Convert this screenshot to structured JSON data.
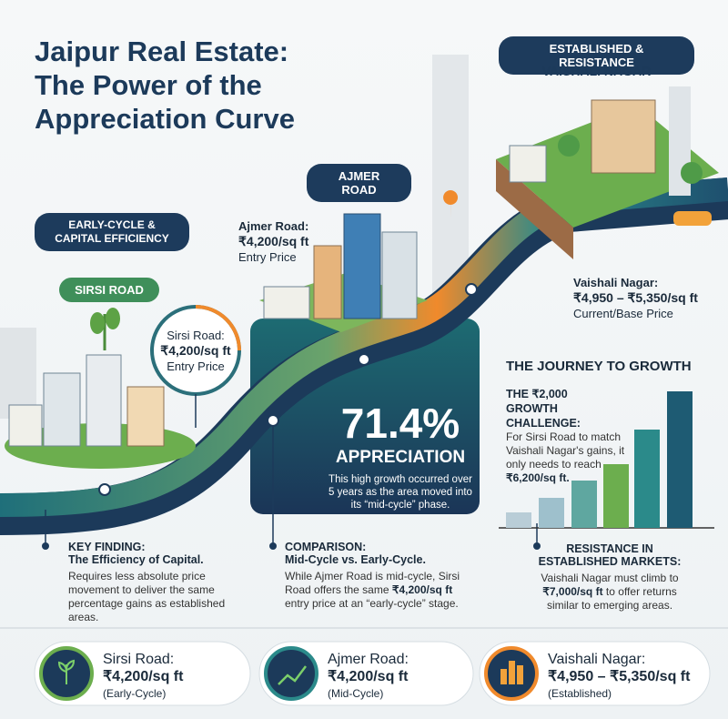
{
  "header": {
    "title_lines": [
      "Jaipur Real Estate:",
      "The Power of the",
      "Appreciation Curve"
    ]
  },
  "zones": {
    "established": {
      "badge": "ESTABLISHED & RESISTANCE",
      "name": "VAISHALI NAGAR"
    },
    "ajmer": {
      "badge": "AJMER ROAD"
    },
    "early": {
      "badge_lines": [
        "EARLY-CYCLE &",
        "CAPITAL EFFICIENCY"
      ],
      "name": "SIRSI ROAD"
    }
  },
  "price_tags": {
    "ajmer": {
      "name": "Ajmer Road:",
      "price": "₹4,200/sq ft",
      "note": "Entry Price"
    },
    "sirsi": {
      "name": "Sirsi Road:",
      "price": "₹4,200/sq ft",
      "note": "Entry Price"
    },
    "vaishali": {
      "name": "Vaishali Nagar:",
      "price": "₹4,950 – ₹5,350/sq ft",
      "note": "Current/Base Price"
    }
  },
  "highlight": {
    "figure": "71.4%",
    "label": "APPRECIATION",
    "text": "This high growth occurred over 5 years as the area moved into its “mid-cycle” phase."
  },
  "journey": {
    "title": "THE JOURNEY TO GROWTH",
    "heading_lines": [
      "THE ₹2,000",
      "GROWTH CHALLENGE:"
    ],
    "text": "For Sirsi Road to match Vaishali Nagar's gains, it only needs to reach",
    "emphasis": "₹6,200/sq ft."
  },
  "findings": [
    {
      "label": "KEY FINDING:",
      "heading": "The Efficiency of Capital.",
      "text": "Requires less absolute price movement to deliver the same percentage gains as established areas."
    },
    {
      "label": "COMPARISON:",
      "heading": "Mid-Cycle vs. Early-Cycle.",
      "text_start": "While Ajmer Road is mid-cycle, Sirsi Road offers the same",
      "emphasis": "₹4,200/sq ft",
      "text_end": "entry price at an “early-cycle” stage."
    },
    {
      "heading_lines": [
        "RESISTANCE IN",
        "ESTABLISHED MARKETS:"
      ],
      "text_start": "Vaishali Nagar must climb to",
      "emphasis": "₹7,000/sq ft",
      "text_end": "to offer returns similar to emerging areas."
    }
  ],
  "cards": [
    {
      "name": "Sirsi Road:",
      "price": "₹4,200/sq ft",
      "stage": "(Early-Cycle)"
    },
    {
      "name": "Ajmer Road:",
      "price": "₹4,200/sq ft",
      "stage": "(Mid-Cycle)"
    },
    {
      "name": "Vaishali Nagar:",
      "price": "₹4,950 – ₹5,350/sq ft",
      "stage": "(Established)"
    }
  ]
}
